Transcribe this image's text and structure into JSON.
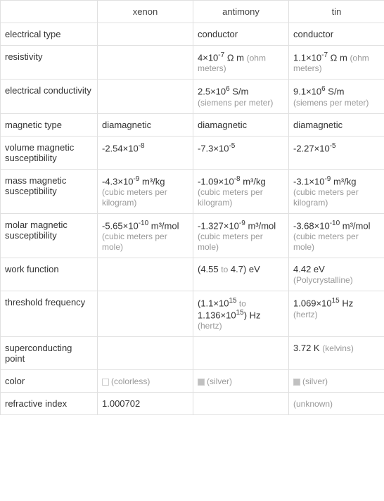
{
  "columns": [
    "xenon",
    "antimony",
    "tin"
  ],
  "rows": [
    {
      "label": "electrical type",
      "xenon": "",
      "antimony": "conductor",
      "tin": "conductor"
    },
    {
      "label": "resistivity",
      "xenon": "",
      "antimony_val": "4×10",
      "antimony_exp": "-7",
      "antimony_unit": " Ω m",
      "antimony_sub": "(ohm meters)",
      "tin_val": "1.1×10",
      "tin_exp": "-7",
      "tin_unit": " Ω m",
      "tin_sub": "(ohm meters)"
    },
    {
      "label": "electrical conductivity",
      "xenon": "",
      "antimony_val": "2.5×10",
      "antimony_exp": "6",
      "antimony_unit": " S/m",
      "antimony_sub": "(siemens per meter)",
      "tin_val": "9.1×10",
      "tin_exp": "6",
      "tin_unit": " S/m",
      "tin_sub": "(siemens per meter)"
    },
    {
      "label": "magnetic type",
      "xenon": "diamagnetic",
      "antimony": "diamagnetic",
      "tin": "diamagnetic"
    },
    {
      "label": "volume magnetic susceptibility",
      "xenon_val": "-2.54×10",
      "xenon_exp": "-8",
      "antimony_val": "-7.3×10",
      "antimony_exp": "-5",
      "tin_val": "-2.27×10",
      "tin_exp": "-5"
    },
    {
      "label": "mass magnetic susceptibility",
      "xenon_val": "-4.3×10",
      "xenon_exp": "-9",
      "xenon_unit": " m³/kg",
      "xenon_sub": "(cubic meters per kilogram)",
      "antimony_val": "-1.09×10",
      "antimony_exp": "-8",
      "antimony_unit": " m³/kg",
      "antimony_sub": "(cubic meters per kilogram)",
      "tin_val": "-3.1×10",
      "tin_exp": "-9",
      "tin_unit": " m³/kg",
      "tin_sub": "(cubic meters per kilogram)"
    },
    {
      "label": "molar magnetic susceptibility",
      "xenon_val": "-5.65×10",
      "xenon_exp": "-10",
      "xenon_unit": " m³/mol",
      "xenon_sub": "(cubic meters per mole)",
      "antimony_val": "-1.327×10",
      "antimony_exp": "-9",
      "antimony_unit": " m³/mol",
      "antimony_sub": "(cubic meters per mole)",
      "tin_val": "-3.68×10",
      "tin_exp": "-10",
      "tin_unit": " m³/mol",
      "tin_sub": "(cubic meters per mole)"
    },
    {
      "label": "work function",
      "xenon": "",
      "antimony_val": "(4.55 ",
      "antimony_to": "to",
      "antimony_val2": " 4.7) eV",
      "tin_val": "4.42 eV",
      "tin_sub": "(Polycrystalline)"
    },
    {
      "label": "threshold frequency",
      "xenon": "",
      "antimony_prefix": "(1.1×10",
      "antimony_exp1": "15",
      "antimony_to": " to ",
      "antimony_val2": "1.136×10",
      "antimony_exp2": "15",
      "antimony_suffix": ") Hz",
      "antimony_sub": "(hertz)",
      "tin_val": "1.069×10",
      "tin_exp": "15",
      "tin_unit": " Hz",
      "tin_sub": "(hertz)"
    },
    {
      "label": "superconducting point",
      "xenon": "",
      "antimony": "",
      "tin_val": "3.72 K",
      "tin_sub": "(kelvins)"
    },
    {
      "label": "color",
      "xenon_color": "#ffffff",
      "xenon_colortext": "(colorless)",
      "antimony_color": "#c0c0c0",
      "antimony_colortext": "(silver)",
      "tin_color": "#c0c0c0",
      "tin_colortext": "(silver)"
    },
    {
      "label": "refractive index",
      "xenon": "1.000702",
      "antimony": "",
      "tin_sub": "(unknown)"
    }
  ],
  "colors": {
    "border": "#e0e0e0",
    "unit_text": "#999999",
    "text": "#333333"
  }
}
